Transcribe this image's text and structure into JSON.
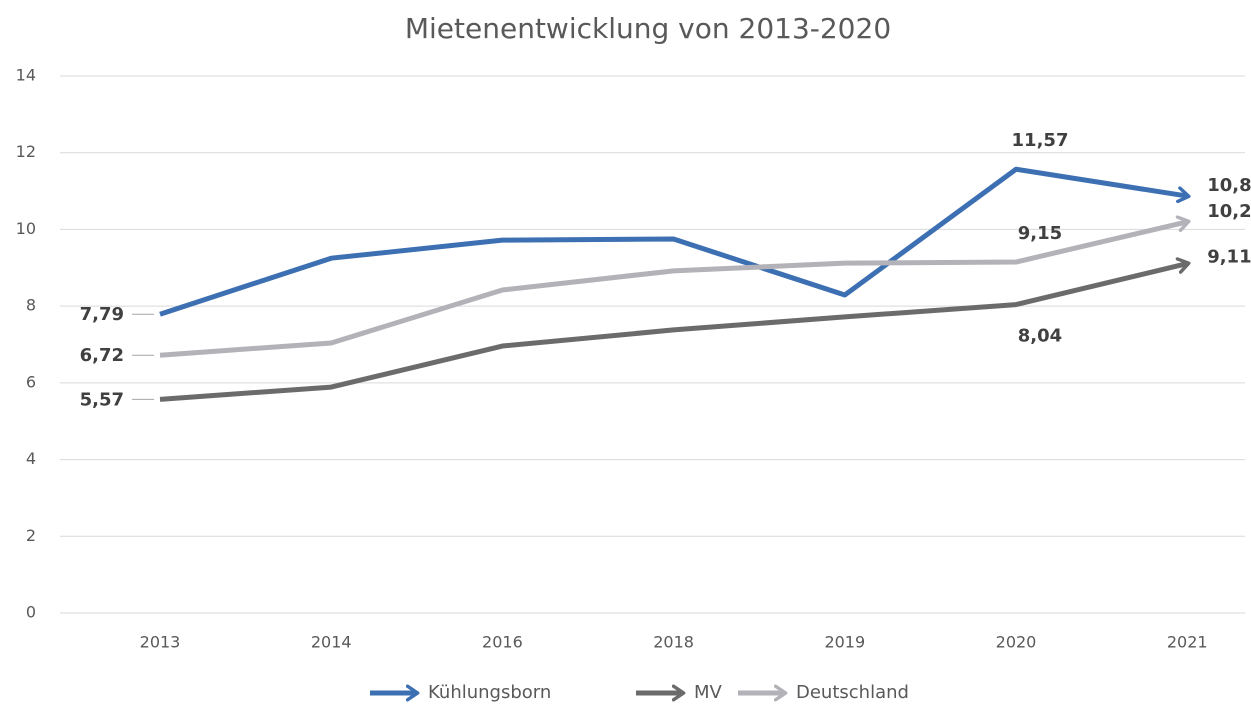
{
  "chart_data": {
    "type": "line",
    "title": "Mietenentwicklung von 2013-2020",
    "categories": [
      "2013",
      "2014",
      "2016",
      "2018",
      "2019",
      "2020",
      "2021"
    ],
    "ylim": [
      0,
      14
    ],
    "yticks": [
      0,
      2,
      4,
      6,
      8,
      10,
      12,
      14
    ],
    "grid": true,
    "legend": "bottom",
    "series": [
      {
        "name": "Kühlungsborn",
        "color": "#3d70b2",
        "values": [
          7.79,
          9.25,
          9.72,
          9.75,
          8.29,
          11.57,
          10.87
        ],
        "value_labels": [
          "7,79",
          null,
          null,
          null,
          null,
          "11,57",
          "10,87"
        ]
      },
      {
        "name": "MV",
        "color": "#6b6b6b",
        "values": [
          5.57,
          5.89,
          6.96,
          7.38,
          7.72,
          8.04,
          9.11
        ],
        "value_labels": [
          "5,57",
          null,
          null,
          null,
          null,
          "8,04",
          "9,11"
        ]
      },
      {
        "name": "Deutschland",
        "color": "#b2b2b8",
        "values": [
          6.72,
          7.04,
          8.42,
          8.92,
          9.12,
          9.15,
          10.2
        ],
        "value_labels": [
          "6,72",
          null,
          null,
          null,
          null,
          "9,15",
          "10,20"
        ]
      }
    ]
  }
}
